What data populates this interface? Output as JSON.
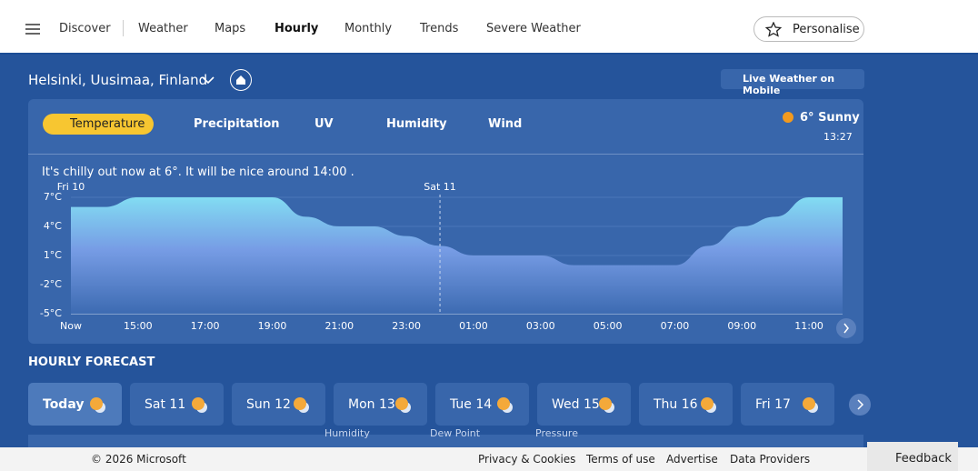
{
  "nav": {
    "items": [
      "Discover",
      "Weather",
      "Maps",
      "Hourly",
      "Monthly",
      "Trends",
      "Severe Weather"
    ],
    "personalise": "Personalise"
  },
  "location": {
    "name": "Helsinki, Uusimaa, Finland",
    "mobile": "Live Weather on Mobile"
  },
  "tabs": [
    "Temperature",
    "Precipitation",
    "UV",
    "Humidity",
    "Wind"
  ],
  "current": {
    "condition": "6° Sunny",
    "time": "13:27"
  },
  "summary": "It's chilly out now at 6°. It will be nice around 14:00 .",
  "chart_data": {
    "type": "area",
    "color": "#7fdcf4",
    "categories": [
      "Now",
      null,
      "15:00",
      null,
      "17:00",
      null,
      "19:00",
      null,
      "21:00",
      null,
      "23:00",
      null,
      "01:00",
      null,
      "03:00",
      null,
      "05:00",
      null,
      "07:00",
      null,
      "09:00",
      null,
      "11:00",
      null
    ],
    "values": [
      6,
      6,
      7,
      7,
      7,
      7,
      7,
      5,
      4,
      4,
      3,
      2,
      1,
      1,
      1,
      0,
      0,
      0,
      0,
      2,
      4,
      5,
      7,
      7
    ],
    "ylim": [
      -5,
      7
    ],
    "yticks": [
      {
        "value": 7,
        "label": "7°C"
      },
      {
        "value": 4,
        "label": "4°C"
      },
      {
        "value": 1,
        "label": "1°C"
      },
      {
        "value": -2,
        "label": "-2°C"
      },
      {
        "value": -5,
        "label": "-5°C"
      }
    ],
    "day_markers": [
      "Fri 10",
      "Sat 11"
    ]
  },
  "forecast": {
    "title": "HOURLY FORECAST",
    "days": [
      "Today",
      "Sat 11",
      "Sun 12",
      "Mon 13",
      "Tue 14",
      "Wed 15",
      "Thu 16",
      "Fri 17"
    ],
    "details": [
      "Humidity",
      "Dew Point",
      "Pressure"
    ]
  },
  "footer": {
    "copyright": "© 2026 Microsoft",
    "links": [
      "Privacy & Cookies",
      "Terms of use",
      "Advertise",
      "Data Providers"
    ],
    "feedback": "Feedback"
  }
}
